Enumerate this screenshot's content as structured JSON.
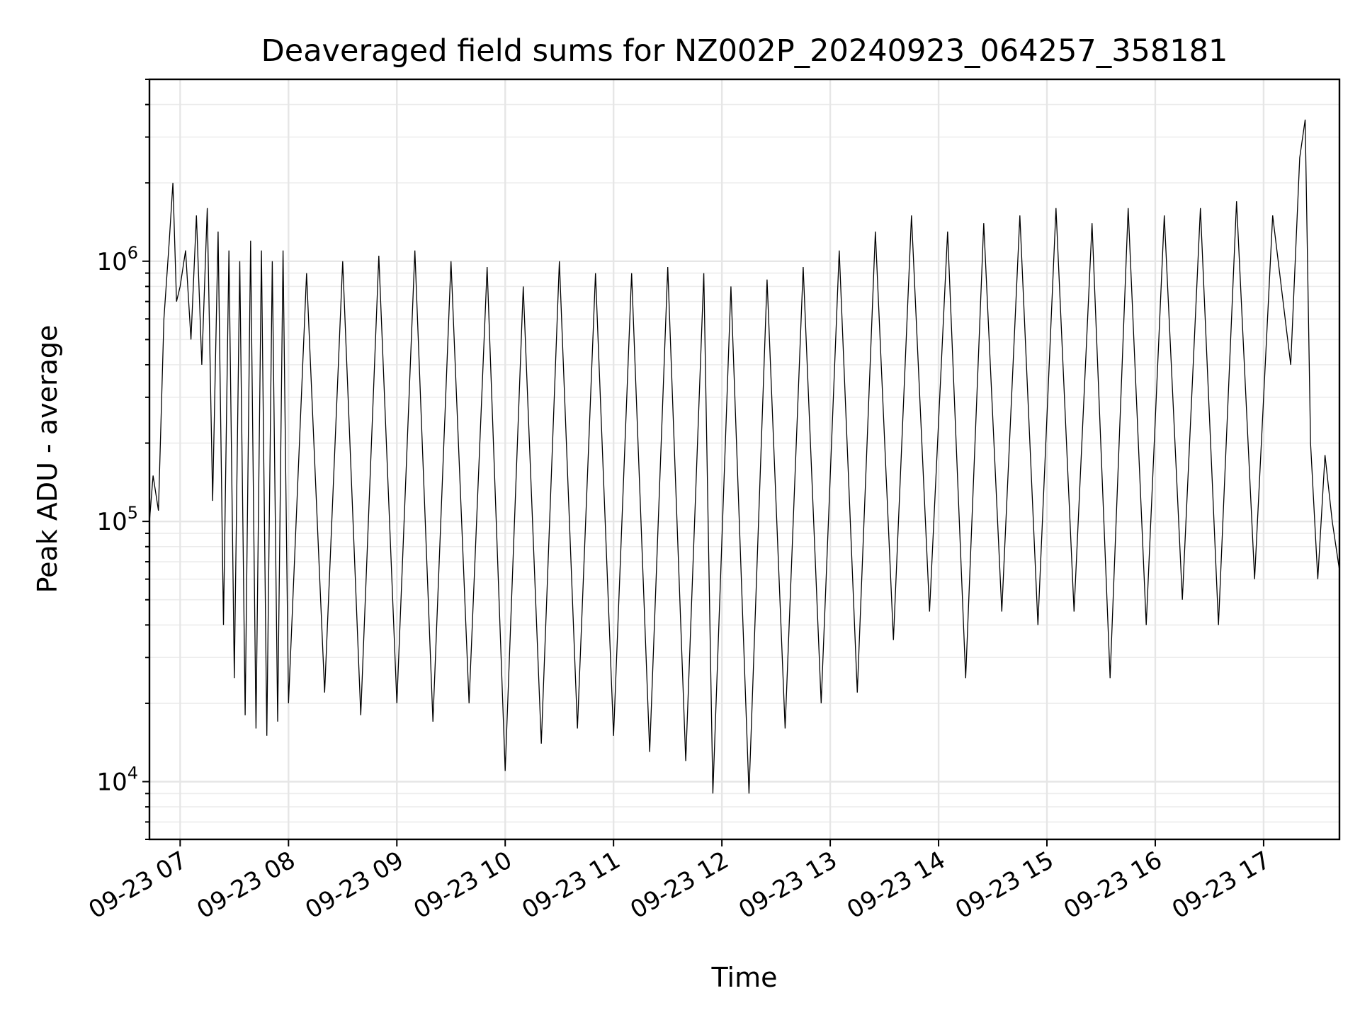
{
  "chart_data": {
    "type": "line",
    "title": "Deaveraged field sums for NZ002P_20240923_064257_358181",
    "xlabel": "Time",
    "ylabel": "Peak ADU - average",
    "y_scale": "log",
    "ylim": [
      6000,
      5000000
    ],
    "xlim": [
      "2024-09-23 06:43",
      "2024-09-23 17:42"
    ],
    "grid": true,
    "x_ticks": [
      {
        "value": "2024-09-23 07:00",
        "label": "09-23 07"
      },
      {
        "value": "2024-09-23 08:00",
        "label": "09-23 08"
      },
      {
        "value": "2024-09-23 09:00",
        "label": "09-23 09"
      },
      {
        "value": "2024-09-23 10:00",
        "label": "09-23 10"
      },
      {
        "value": "2024-09-23 11:00",
        "label": "09-23 11"
      },
      {
        "value": "2024-09-23 12:00",
        "label": "09-23 12"
      },
      {
        "value": "2024-09-23 13:00",
        "label": "09-23 13"
      },
      {
        "value": "2024-09-23 14:00",
        "label": "09-23 14"
      },
      {
        "value": "2024-09-23 15:00",
        "label": "09-23 15"
      },
      {
        "value": "2024-09-23 16:00",
        "label": "09-23 16"
      },
      {
        "value": "2024-09-23 17:00",
        "label": "09-23 17"
      }
    ],
    "y_ticks": [
      {
        "value": 10000,
        "base": "10",
        "exp": "4"
      },
      {
        "value": 100000,
        "base": "10",
        "exp": "5"
      },
      {
        "value": 1000000,
        "base": "10",
        "exp": "6"
      }
    ],
    "series": [
      {
        "color": "#000000",
        "points": [
          [
            "2024-09-23 06:43",
            100000
          ],
          [
            "2024-09-23 06:45",
            150000
          ],
          [
            "2024-09-23 06:48",
            110000
          ],
          [
            "2024-09-23 06:51",
            600000
          ],
          [
            "2024-09-23 06:54",
            1200000
          ],
          [
            "2024-09-23 06:56",
            2000000
          ],
          [
            "2024-09-23 06:58",
            700000
          ],
          [
            "2024-09-23 07:00",
            800000
          ],
          [
            "2024-09-23 07:03",
            1100000
          ],
          [
            "2024-09-23 07:06",
            500000
          ],
          [
            "2024-09-23 07:09",
            1500000
          ],
          [
            "2024-09-23 07:12",
            400000
          ],
          [
            "2024-09-23 07:15",
            1600000
          ],
          [
            "2024-09-23 07:18",
            120000
          ],
          [
            "2024-09-23 07:21",
            1300000
          ],
          [
            "2024-09-23 07:24",
            40000
          ],
          [
            "2024-09-23 07:27",
            1100000
          ],
          [
            "2024-09-23 07:30",
            25000
          ],
          [
            "2024-09-23 07:33",
            1000000
          ],
          [
            "2024-09-23 07:36",
            18000
          ],
          [
            "2024-09-23 07:39",
            1200000
          ],
          [
            "2024-09-23 07:42",
            16000
          ],
          [
            "2024-09-23 07:45",
            1100000
          ],
          [
            "2024-09-23 07:48",
            15000
          ],
          [
            "2024-09-23 07:51",
            1000000
          ],
          [
            "2024-09-23 07:54",
            17000
          ],
          [
            "2024-09-23 07:57",
            1100000
          ],
          [
            "2024-09-23 08:00",
            20000
          ],
          [
            "2024-09-23 08:10",
            900000
          ],
          [
            "2024-09-23 08:20",
            22000
          ],
          [
            "2024-09-23 08:30",
            1000000
          ],
          [
            "2024-09-23 08:40",
            18000
          ],
          [
            "2024-09-23 08:50",
            1050000
          ],
          [
            "2024-09-23 09:00",
            20000
          ],
          [
            "2024-09-23 09:10",
            1100000
          ],
          [
            "2024-09-23 09:20",
            17000
          ],
          [
            "2024-09-23 09:30",
            1000000
          ],
          [
            "2024-09-23 09:40",
            20000
          ],
          [
            "2024-09-23 09:50",
            950000
          ],
          [
            "2024-09-23 10:00",
            11000
          ],
          [
            "2024-09-23 10:10",
            800000
          ],
          [
            "2024-09-23 10:20",
            14000
          ],
          [
            "2024-09-23 10:30",
            1000000
          ],
          [
            "2024-09-23 10:40",
            16000
          ],
          [
            "2024-09-23 10:50",
            900000
          ],
          [
            "2024-09-23 11:00",
            15000
          ],
          [
            "2024-09-23 11:10",
            900000
          ],
          [
            "2024-09-23 11:20",
            13000
          ],
          [
            "2024-09-23 11:30",
            950000
          ],
          [
            "2024-09-23 11:40",
            12000
          ],
          [
            "2024-09-23 11:50",
            900000
          ],
          [
            "2024-09-23 11:55",
            9000
          ],
          [
            "2024-09-23 12:05",
            800000
          ],
          [
            "2024-09-23 12:15",
            9000
          ],
          [
            "2024-09-23 12:25",
            850000
          ],
          [
            "2024-09-23 12:35",
            16000
          ],
          [
            "2024-09-23 12:45",
            950000
          ],
          [
            "2024-09-23 12:55",
            20000
          ],
          [
            "2024-09-23 13:05",
            1100000
          ],
          [
            "2024-09-23 13:15",
            22000
          ],
          [
            "2024-09-23 13:25",
            1300000
          ],
          [
            "2024-09-23 13:35",
            35000
          ],
          [
            "2024-09-23 13:45",
            1500000
          ],
          [
            "2024-09-23 13:55",
            45000
          ],
          [
            "2024-09-23 14:05",
            1300000
          ],
          [
            "2024-09-23 14:15",
            25000
          ],
          [
            "2024-09-23 14:25",
            1400000
          ],
          [
            "2024-09-23 14:35",
            45000
          ],
          [
            "2024-09-23 14:45",
            1500000
          ],
          [
            "2024-09-23 14:55",
            40000
          ],
          [
            "2024-09-23 15:05",
            1600000
          ],
          [
            "2024-09-23 15:15",
            45000
          ],
          [
            "2024-09-23 15:25",
            1400000
          ],
          [
            "2024-09-23 15:35",
            25000
          ],
          [
            "2024-09-23 15:45",
            1600000
          ],
          [
            "2024-09-23 15:55",
            40000
          ],
          [
            "2024-09-23 16:05",
            1500000
          ],
          [
            "2024-09-23 16:15",
            50000
          ],
          [
            "2024-09-23 16:25",
            1600000
          ],
          [
            "2024-09-23 16:35",
            40000
          ],
          [
            "2024-09-23 16:45",
            1700000
          ],
          [
            "2024-09-23 16:55",
            60000
          ],
          [
            "2024-09-23 17:05",
            1500000
          ],
          [
            "2024-09-23 17:15",
            400000
          ],
          [
            "2024-09-23 17:20",
            2500000
          ],
          [
            "2024-09-23 17:23",
            3500000
          ],
          [
            "2024-09-23 17:26",
            200000
          ],
          [
            "2024-09-23 17:30",
            60000
          ],
          [
            "2024-09-23 17:34",
            180000
          ],
          [
            "2024-09-23 17:38",
            100000
          ],
          [
            "2024-09-23 17:42",
            65000
          ]
        ]
      }
    ]
  }
}
